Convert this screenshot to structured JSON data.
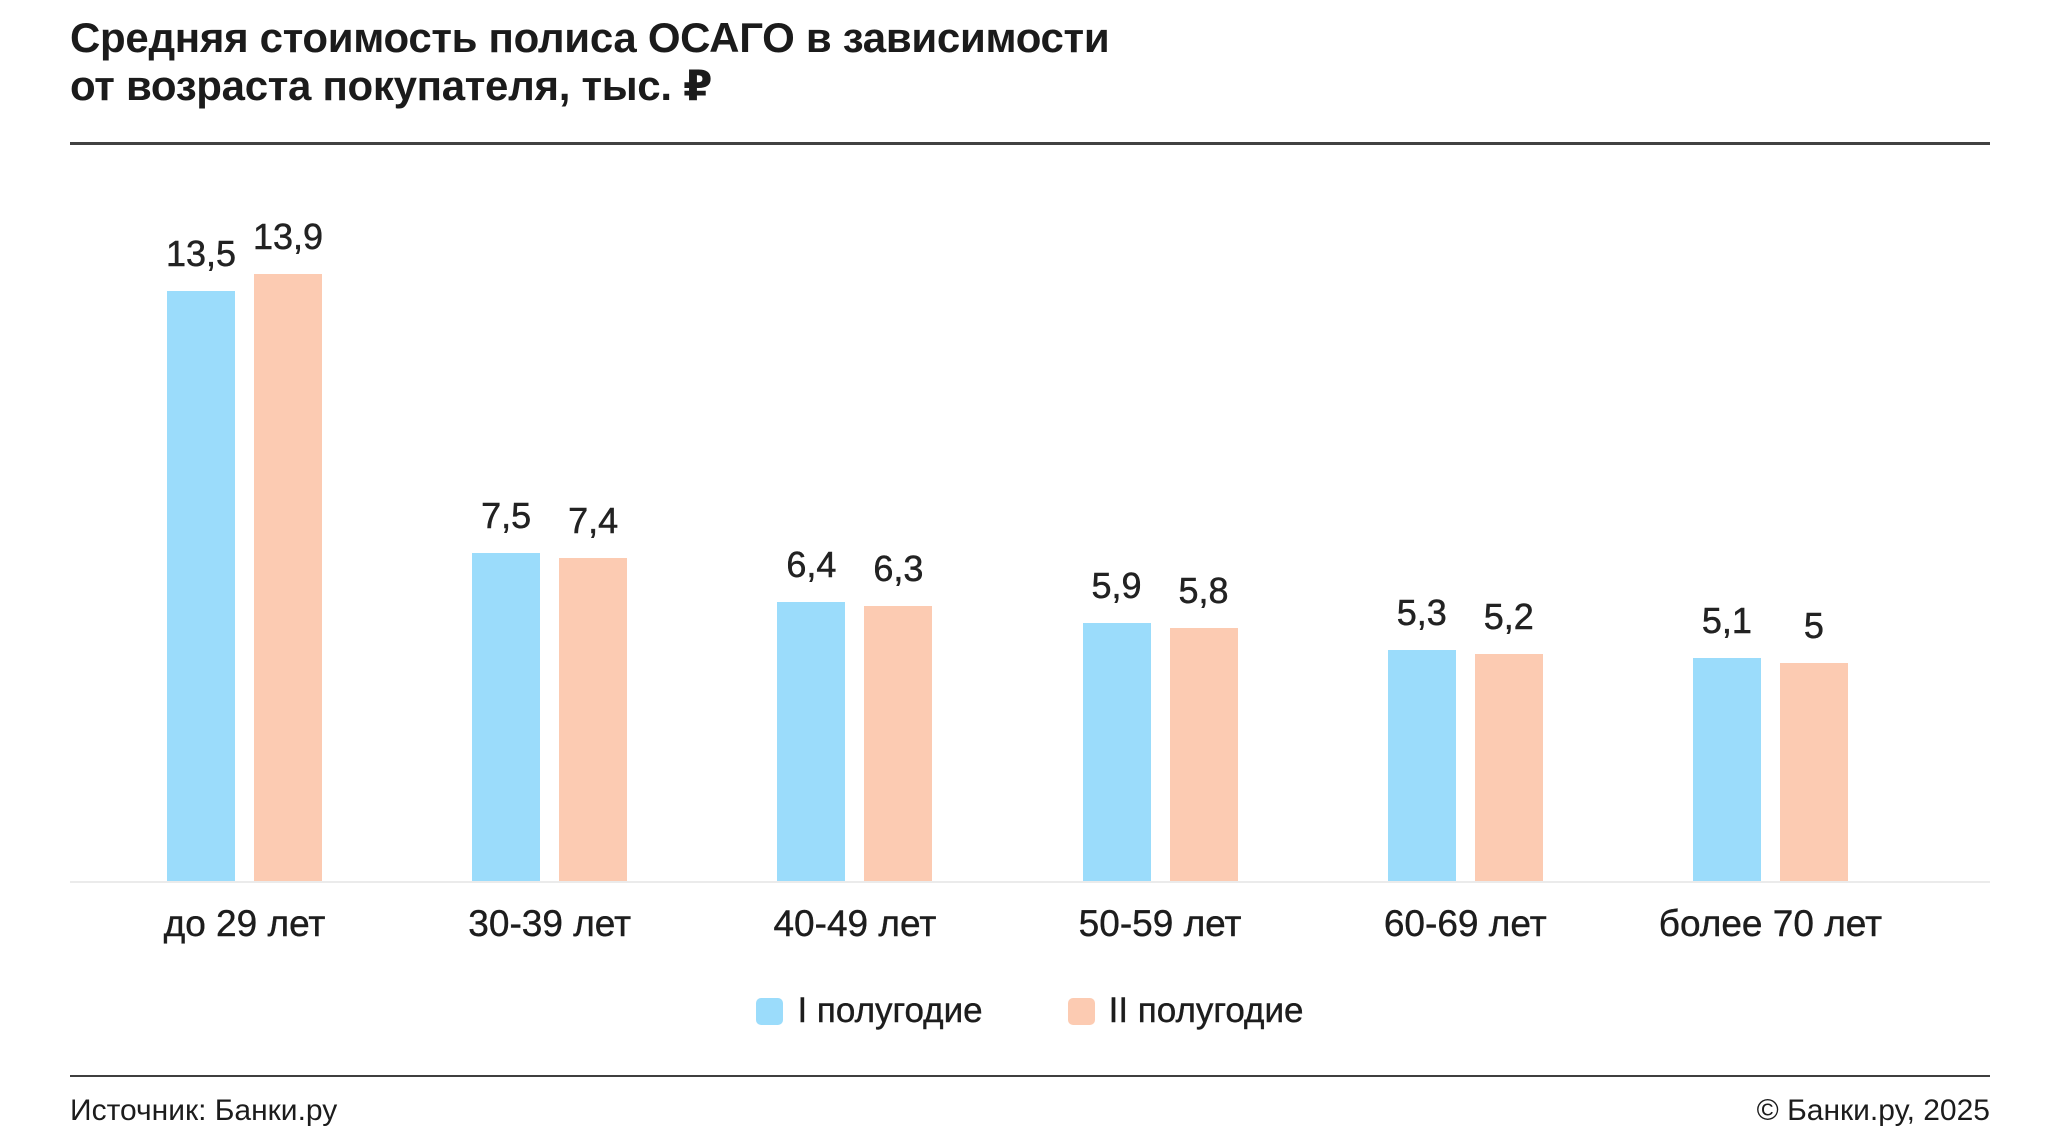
{
  "title": {
    "line1": "Средняя стоимость полиса ОСАГО в зависимости",
    "line2": "от возраста покупателя, тыс. ₽"
  },
  "footer": {
    "source": "Источник: Банки.ру",
    "copyright": "© Банки.ру, 2025"
  },
  "colors": {
    "series1": "#9BDCFB",
    "series2": "#FCCBB2",
    "text": "#1b1b1b",
    "baseline": "#ebebeb",
    "divider": "#414141"
  },
  "chart_data": {
    "type": "bar",
    "title": "Средняя стоимость полиса ОСАГО в зависимости от возраста покупателя, тыс. ₽",
    "categories": [
      "до 29 лет",
      "30-39 лет",
      "40-49 лет",
      "50-59 лет",
      "60-69 лет",
      "более 70 лет"
    ],
    "series": [
      {
        "name": "I полугодие",
        "color": "#9BDCFB",
        "values": [
          13.5,
          7.5,
          6.4,
          5.9,
          5.3,
          5.1
        ]
      },
      {
        "name": "II полугодие",
        "color": "#FCCBB2",
        "values": [
          13.9,
          7.4,
          6.3,
          5.8,
          5.2,
          5
        ]
      }
    ],
    "value_label_decimal_separator": ",",
    "xlabel": "",
    "ylabel": "тыс. ₽",
    "ylim": [
      0,
      16.9
    ],
    "grid": false,
    "value_labels_shown": true,
    "legend_position": "bottom"
  }
}
